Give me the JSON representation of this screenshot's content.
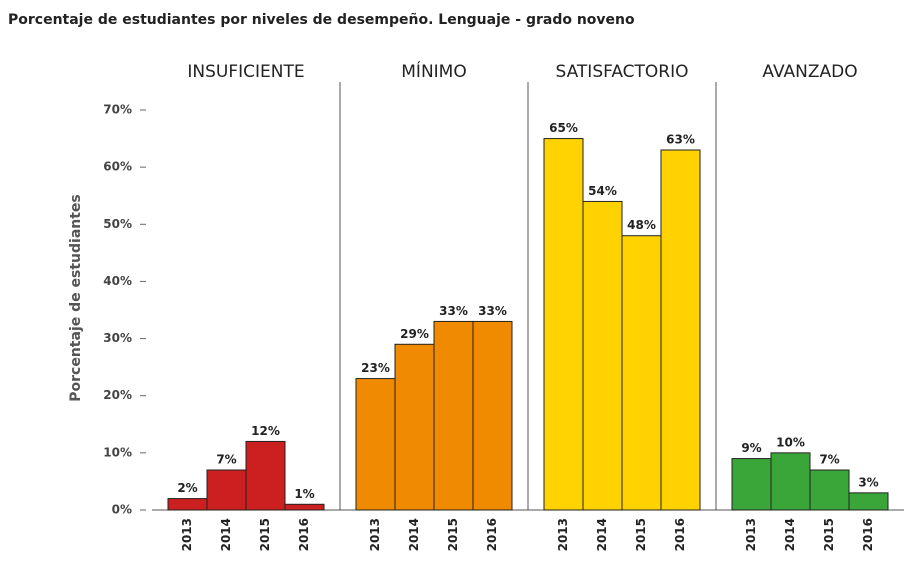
{
  "chart_data": {
    "type": "bar",
    "title": "Porcentaje de estudiantes por niveles de desempeño. Lenguaje - grado noveno",
    "y_label": "Porcentaje de estudiantes",
    "categories": [
      "2013",
      "2014",
      "2015",
      "2016"
    ],
    "facets": [
      {
        "name": "INSUFICIENTE",
        "color": "#cc1f1f",
        "values": [
          2,
          7,
          12,
          1
        ],
        "value_labels": [
          "2%",
          "7%",
          "12%",
          "1%"
        ]
      },
      {
        "name": "MÍNIMO",
        "color": "#f08a00",
        "values": [
          23,
          29,
          33,
          33
        ],
        "value_labels": [
          "23%",
          "29%",
          "33%",
          "33%"
        ]
      },
      {
        "name": "SATISFACTORIO",
        "color": "#ffd200",
        "values": [
          65,
          54,
          48,
          63
        ],
        "value_labels": [
          "65%",
          "54%",
          "48%",
          "63%"
        ]
      },
      {
        "name": "AVANZADO",
        "color": "#3aa63a",
        "values": [
          9,
          10,
          7,
          3
        ],
        "value_labels": [
          "9%",
          "10%",
          "7%",
          "3%"
        ]
      }
    ],
    "ylim": [
      0,
      70
    ],
    "yticks": [
      {
        "value": 0,
        "label": "0%"
      },
      {
        "value": 10,
        "label": "10%"
      },
      {
        "value": 20,
        "label": "20%"
      },
      {
        "value": 30,
        "label": "30%"
      },
      {
        "value": 40,
        "label": "40%"
      },
      {
        "value": 50,
        "label": "50%"
      },
      {
        "value": 60,
        "label": "60%"
      },
      {
        "value": 70,
        "label": "70%"
      }
    ]
  }
}
